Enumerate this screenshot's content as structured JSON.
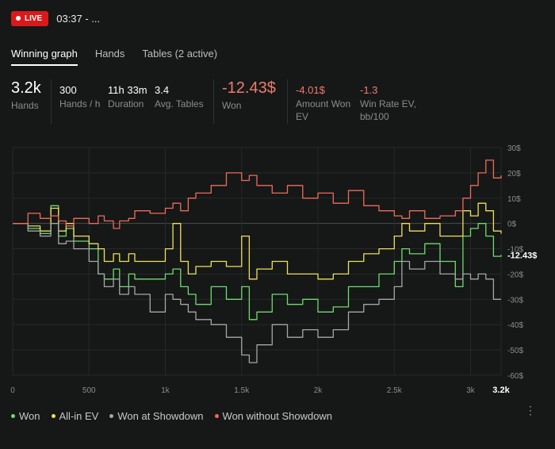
{
  "header": {
    "live_label": "LIVE",
    "time": "03:37 - ..."
  },
  "tabs": [
    {
      "label": "Winning graph",
      "active": true
    },
    {
      "label": "Hands",
      "active": false
    },
    {
      "label": "Tables (2 active)",
      "active": false
    }
  ],
  "stats": {
    "hands": {
      "value": "3.2k",
      "label": "Hands"
    },
    "hands_per_hour": {
      "value": "300",
      "label": "Hands / h"
    },
    "duration": {
      "value": "11h 33m",
      "label": "Duration"
    },
    "avg_tables": {
      "value": "3.4",
      "label": "Avg. Tables"
    },
    "won": {
      "value": "-12.43$",
      "label": "Won"
    },
    "amount_won_ev": {
      "value": "-4.01$",
      "label_1": "Amount Won",
      "label_2": "EV"
    },
    "win_rate_ev": {
      "value": "-1.3",
      "label_1": "Win Rate EV,",
      "label_2": "bb/100"
    }
  },
  "chart_data": {
    "type": "line",
    "xlim": [
      0,
      3200
    ],
    "ylim": [
      -60,
      30
    ],
    "x_ticks": [
      "0",
      "500",
      "1k",
      "1.5k",
      "2k",
      "2.5k",
      "3k"
    ],
    "x_tick_values": [
      0,
      500,
      1000,
      1500,
      2000,
      2500,
      3000
    ],
    "x_end_label": "3.2k",
    "y_ticks": [
      "30$",
      "20$",
      "10$",
      "0$",
      "-10$",
      "-20$",
      "-30$",
      "-40$",
      "-50$",
      "-60$"
    ],
    "y_tick_values": [
      30,
      20,
      10,
      0,
      -10,
      -20,
      -30,
      -40,
      -50,
      -60
    ],
    "end_label": "-12.43$",
    "grid": true,
    "legend_position": "bottom-left",
    "series": [
      {
        "name": "Won",
        "color": "#6fdb6f",
        "x": [
          0,
          100,
          180,
          250,
          300,
          350,
          400,
          500,
          560,
          600,
          660,
          700,
          760,
          800,
          900,
          1000,
          1050,
          1100,
          1150,
          1200,
          1300,
          1400,
          1500,
          1550,
          1600,
          1700,
          1800,
          1900,
          2000,
          2100,
          2200,
          2300,
          2400,
          2500,
          2550,
          2600,
          2700,
          2800,
          2900,
          2950,
          3000,
          3050,
          3100,
          3150,
          3200
        ],
        "y": [
          0,
          -2,
          -4,
          7,
          -5,
          -2,
          -7,
          -10,
          -20,
          -22,
          -18,
          -25,
          -20,
          -22,
          -22,
          -20,
          -18,
          -25,
          -28,
          -32,
          -25,
          -30,
          -25,
          -38,
          -35,
          -28,
          -32,
          -30,
          -35,
          -33,
          -25,
          -25,
          -20,
          -15,
          -10,
          -12,
          -8,
          -15,
          -25,
          -5,
          -2,
          0,
          -5,
          -13,
          -12.43
        ]
      },
      {
        "name": "All-in EV",
        "color": "#f0e05a",
        "x": [
          0,
          100,
          180,
          250,
          300,
          350,
          400,
          500,
          560,
          600,
          660,
          700,
          760,
          800,
          900,
          1000,
          1050,
          1100,
          1150,
          1200,
          1300,
          1400,
          1500,
          1550,
          1600,
          1700,
          1800,
          1900,
          2000,
          2100,
          2200,
          2300,
          2400,
          2500,
          2550,
          2600,
          2700,
          2800,
          2900,
          2950,
          3000,
          3050,
          3100,
          3150,
          3200
        ],
        "y": [
          0,
          -1,
          -3,
          6,
          -3,
          0,
          -5,
          -8,
          -10,
          -15,
          -12,
          -15,
          -12,
          -15,
          -15,
          -10,
          0,
          -15,
          -20,
          -17,
          -15,
          -17,
          -5,
          -22,
          -18,
          -15,
          -20,
          -20,
          -22,
          -20,
          -15,
          -12,
          -10,
          -5,
          0,
          -3,
          0,
          -5,
          -5,
          5,
          3,
          8,
          5,
          -3,
          -4.01
        ]
      },
      {
        "name": "Won at Showdown",
        "color": "#a6a6a6",
        "x": [
          0,
          100,
          180,
          250,
          300,
          350,
          400,
          500,
          560,
          600,
          660,
          700,
          760,
          800,
          900,
          1000,
          1050,
          1100,
          1150,
          1200,
          1300,
          1400,
          1500,
          1550,
          1600,
          1700,
          1800,
          1900,
          2000,
          2100,
          2200,
          2300,
          2400,
          2500,
          2550,
          2600,
          2700,
          2800,
          2900,
          2950,
          3000,
          3050,
          3100,
          3150,
          3200
        ],
        "y": [
          0,
          -3,
          -5,
          0,
          -8,
          -7,
          -10,
          -15,
          -20,
          -25,
          -22,
          -28,
          -25,
          -28,
          -35,
          -28,
          -30,
          -32,
          -35,
          -38,
          -40,
          -45,
          -52,
          -55,
          -48,
          -40,
          -45,
          -42,
          -45,
          -42,
          -35,
          -32,
          -30,
          -25,
          -15,
          -18,
          -15,
          -20,
          -22,
          -20,
          -22,
          -20,
          -22,
          -30,
          -30
        ]
      },
      {
        "name": "Won without Showdown",
        "color": "#f06a5c",
        "x": [
          0,
          100,
          180,
          250,
          300,
          350,
          400,
          500,
          560,
          600,
          660,
          700,
          760,
          800,
          900,
          1000,
          1050,
          1100,
          1150,
          1200,
          1300,
          1400,
          1500,
          1550,
          1600,
          1700,
          1800,
          1900,
          2000,
          2100,
          2200,
          2300,
          2400,
          2500,
          2550,
          2600,
          2700,
          2800,
          2900,
          2950,
          3000,
          3050,
          3100,
          3150,
          3200
        ],
        "y": [
          0,
          4,
          2,
          3,
          1,
          -1,
          2,
          0,
          3,
          1,
          -2,
          1,
          2,
          5,
          4,
          6,
          8,
          5,
          10,
          12,
          15,
          20,
          17,
          19,
          15,
          12,
          15,
          10,
          12,
          8,
          13,
          7,
          5,
          3,
          2,
          5,
          2,
          3,
          5,
          10,
          15,
          20,
          25,
          18,
          19
        ]
      }
    ]
  }
}
